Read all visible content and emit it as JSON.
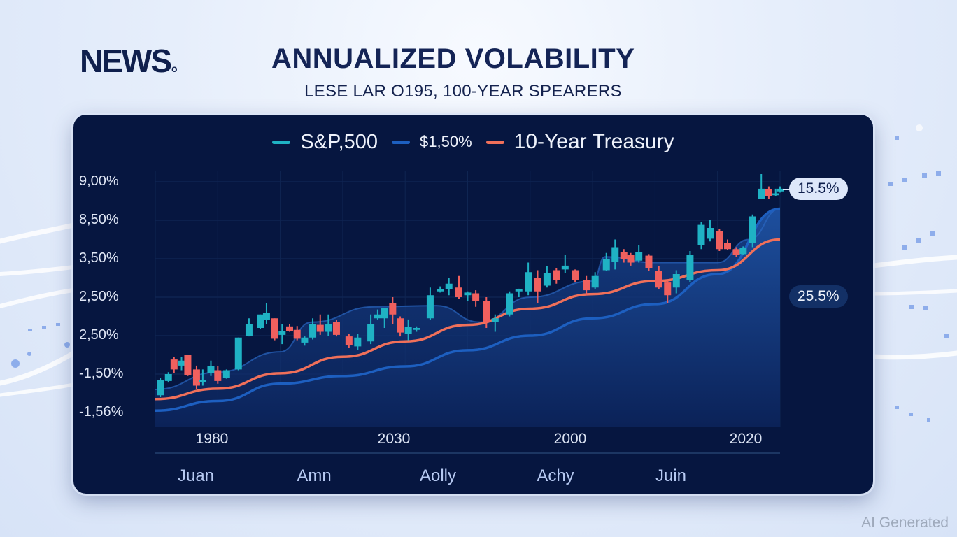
{
  "header": {
    "brand": "NEWS",
    "brand_mark": "o",
    "title": "ANNUALIZED VOLABILITY",
    "subtitle": "LESE LAR O195, 100-YEAR SPEARERS"
  },
  "watermark": "AI Generated",
  "colors": {
    "panel_bg": "#061640",
    "sp500": "#1fb2c4",
    "secondary": "#1d5fc0",
    "treasury": "#f0705a",
    "candle_up": "#1fb2c4",
    "candle_down": "#f0605e",
    "area": "#1a4b9c"
  },
  "chart_data": {
    "type": "line",
    "title": "ANNUALIZED VOLABILITY",
    "subtitle": "LESE LAR O195, 100-YEAR SPEARERS",
    "legend_position": "top-center",
    "legend": [
      {
        "name": "S&P,500",
        "color": "#1fb2c4"
      },
      {
        "name": "$1,50%",
        "color": "#1d5fc0"
      },
      {
        "name": "10-Year Treasury",
        "color": "#f0705a"
      }
    ],
    "y_ticks": [
      "9,00%",
      "8,50%",
      "3,50%",
      "2,50%",
      "2,50%",
      "-1,50%",
      "-1,56%"
    ],
    "y_scale_note": "values below are in tick-index units: 0 = bottom tick (-1,56%), 6 = top tick (9,00%)",
    "ylim": [
      0,
      6
    ],
    "x_ticks": [
      "1980",
      "2030",
      "2000",
      "2020"
    ],
    "x_ticks_secondary": [
      "Juan",
      "Amn",
      "Aolly",
      "Achy",
      "Juin"
    ],
    "xlim": [
      0,
      1
    ],
    "grid": true,
    "series": [
      {
        "name": "10-Year Treasury",
        "style": "line",
        "x": [
          0,
          0.1,
          0.2,
          0.3,
          0.4,
          0.5,
          0.6,
          0.7,
          0.8,
          0.9,
          1.0
        ],
        "y": [
          0.35,
          0.62,
          1.02,
          1.45,
          1.85,
          2.28,
          2.7,
          3.08,
          3.42,
          3.7,
          4.5
        ]
      },
      {
        "name": "$1,50%",
        "style": "line",
        "x": [
          0,
          0.1,
          0.2,
          0.3,
          0.4,
          0.5,
          0.6,
          0.7,
          0.8,
          0.9,
          1.0
        ],
        "y": [
          0.05,
          0.3,
          0.75,
          0.95,
          1.2,
          1.62,
          2.0,
          2.45,
          2.82,
          3.6,
          5.3
        ]
      },
      {
        "name": "S&P,500 band",
        "style": "area",
        "x": [
          0,
          0.1,
          0.2,
          0.25,
          0.35,
          0.45,
          0.52,
          0.6,
          0.7,
          0.72,
          0.8,
          0.9,
          0.95,
          1.0
        ],
        "y": [
          0.6,
          1.05,
          1.58,
          2.35,
          2.75,
          2.78,
          2.35,
          3.0,
          3.42,
          4.05,
          3.9,
          3.9,
          4.5,
          5.3
        ]
      }
    ],
    "candles": [
      {
        "x": 0.008,
        "o": 0.45,
        "c": 0.85,
        "h": 0.9,
        "l": 0.4
      },
      {
        "x": 0.021,
        "o": 0.82,
        "c": 1.0,
        "h": 1.05,
        "l": 0.78
      },
      {
        "x": 0.03,
        "o": 1.38,
        "c": 1.12,
        "h": 1.45,
        "l": 1.02
      },
      {
        "x": 0.042,
        "o": 1.22,
        "c": 1.35,
        "h": 1.45,
        "l": 1.1
      },
      {
        "x": 0.052,
        "o": 1.5,
        "c": 0.98,
        "h": 1.5,
        "l": 0.95
      },
      {
        "x": 0.066,
        "o": 1.12,
        "c": 0.7,
        "h": 1.22,
        "l": 0.6
      },
      {
        "x": 0.076,
        "o": 0.8,
        "c": 0.85,
        "h": 1.12,
        "l": 0.7
      },
      {
        "x": 0.089,
        "o": 1.02,
        "c": 1.2,
        "h": 1.35,
        "l": 0.95
      },
      {
        "x": 0.1,
        "o": 1.1,
        "c": 0.82,
        "h": 1.2,
        "l": 0.75
      },
      {
        "x": 0.114,
        "o": 0.9,
        "c": 1.1,
        "h": 1.12,
        "l": 0.88
      },
      {
        "x": 0.133,
        "o": 1.12,
        "c": 1.95,
        "h": 1.95,
        "l": 1.1
      },
      {
        "x": 0.15,
        "o": 2.0,
        "c": 2.3,
        "h": 2.45,
        "l": 1.98
      },
      {
        "x": 0.168,
        "o": 2.2,
        "c": 2.55,
        "h": 2.55,
        "l": 2.18
      },
      {
        "x": 0.178,
        "o": 2.4,
        "c": 2.6,
        "h": 2.85,
        "l": 2.3
      },
      {
        "x": 0.191,
        "o": 2.45,
        "c": 1.92,
        "h": 2.45,
        "l": 1.88
      },
      {
        "x": 0.203,
        "o": 2.02,
        "c": 2.12,
        "h": 2.3,
        "l": 1.78
      },
      {
        "x": 0.215,
        "o": 2.24,
        "c": 2.12,
        "h": 2.3,
        "l": 2.1
      },
      {
        "x": 0.227,
        "o": 2.15,
        "c": 1.92,
        "h": 2.25,
        "l": 1.88
      },
      {
        "x": 0.239,
        "o": 1.82,
        "c": 1.95,
        "h": 1.98,
        "l": 1.74
      },
      {
        "x": 0.252,
        "o": 1.95,
        "c": 2.3,
        "h": 2.45,
        "l": 1.9
      },
      {
        "x": 0.264,
        "o": 2.28,
        "c": 2.1,
        "h": 2.55,
        "l": 2.02
      },
      {
        "x": 0.277,
        "o": 2.1,
        "c": 2.3,
        "h": 2.55,
        "l": 2.0
      },
      {
        "x": 0.29,
        "o": 2.35,
        "c": 2.02,
        "h": 2.4,
        "l": 1.98
      },
      {
        "x": 0.31,
        "o": 1.98,
        "c": 1.75,
        "h": 2.05,
        "l": 1.68
      },
      {
        "x": 0.324,
        "o": 1.72,
        "c": 1.95,
        "h": 2.05,
        "l": 1.62
      },
      {
        "x": 0.345,
        "o": 1.85,
        "c": 2.3,
        "h": 2.55,
        "l": 1.78
      },
      {
        "x": 0.356,
        "o": 2.45,
        "c": 2.55,
        "h": 2.68,
        "l": 2.42
      },
      {
        "x": 0.367,
        "o": 2.45,
        "c": 2.72,
        "h": 2.72,
        "l": 2.2
      },
      {
        "x": 0.38,
        "o": 2.85,
        "c": 2.55,
        "h": 3.0,
        "l": 2.3
      },
      {
        "x": 0.392,
        "o": 2.45,
        "c": 2.08,
        "h": 2.5,
        "l": 1.98
      },
      {
        "x": 0.405,
        "o": 2.05,
        "c": 2.22,
        "h": 2.42,
        "l": 1.88
      },
      {
        "x": 0.418,
        "o": 2.15,
        "c": 2.2,
        "h": 2.24,
        "l": 2.1
      },
      {
        "x": 0.44,
        "o": 2.45,
        "c": 3.05,
        "h": 3.25,
        "l": 2.4
      },
      {
        "x": 0.456,
        "o": 3.15,
        "c": 3.2,
        "h": 3.28,
        "l": 3.12
      },
      {
        "x": 0.47,
        "o": 3.2,
        "c": 3.35,
        "h": 3.5,
        "l": 3.05
      },
      {
        "x": 0.486,
        "o": 3.25,
        "c": 3.0,
        "h": 3.55,
        "l": 2.95
      },
      {
        "x": 0.5,
        "o": 3.05,
        "c": 3.12,
        "h": 3.15,
        "l": 2.9
      },
      {
        "x": 0.513,
        "o": 3.1,
        "c": 2.9,
        "h": 3.18,
        "l": 2.75
      },
      {
        "x": 0.53,
        "o": 2.9,
        "c": 2.35,
        "h": 3.0,
        "l": 2.2
      },
      {
        "x": 0.544,
        "o": 2.35,
        "c": 2.45,
        "h": 2.55,
        "l": 2.1
      },
      {
        "x": 0.567,
        "o": 2.55,
        "c": 3.1,
        "h": 3.15,
        "l": 2.5
      },
      {
        "x": 0.582,
        "o": 3.15,
        "c": 3.2,
        "h": 3.22,
        "l": 3.0
      },
      {
        "x": 0.597,
        "o": 3.15,
        "c": 3.65,
        "h": 3.9,
        "l": 3.05
      },
      {
        "x": 0.612,
        "o": 3.5,
        "c": 3.15,
        "h": 3.7,
        "l": 2.85
      },
      {
        "x": 0.627,
        "o": 3.3,
        "c": 3.62,
        "h": 3.8,
        "l": 3.25
      },
      {
        "x": 0.642,
        "o": 3.7,
        "c": 3.45,
        "h": 3.75,
        "l": 3.35
      },
      {
        "x": 0.656,
        "o": 3.72,
        "c": 3.82,
        "h": 4.1,
        "l": 3.62
      },
      {
        "x": 0.672,
        "o": 3.7,
        "c": 3.45,
        "h": 3.72,
        "l": 3.4
      },
      {
        "x": 0.69,
        "o": 3.45,
        "c": 3.18,
        "h": 3.55,
        "l": 3.05
      },
      {
        "x": 0.704,
        "o": 3.25,
        "c": 3.55,
        "h": 3.65,
        "l": 3.2
      },
      {
        "x": 0.722,
        "o": 3.7,
        "c": 4.0,
        "h": 4.15,
        "l": 3.68
      },
      {
        "x": 0.736,
        "o": 3.92,
        "c": 4.3,
        "h": 4.5,
        "l": 3.72
      },
      {
        "x": 0.75,
        "o": 4.18,
        "c": 4.0,
        "h": 4.25,
        "l": 3.9
      },
      {
        "x": 0.761,
        "o": 4.1,
        "c": 3.9,
        "h": 4.15,
        "l": 3.82
      },
      {
        "x": 0.774,
        "o": 3.95,
        "c": 4.18,
        "h": 4.35,
        "l": 3.9
      },
      {
        "x": 0.79,
        "o": 4.08,
        "c": 3.75,
        "h": 4.12,
        "l": 3.68
      },
      {
        "x": 0.806,
        "o": 3.68,
        "c": 3.25,
        "h": 3.8,
        "l": 3.2
      },
      {
        "x": 0.82,
        "o": 3.38,
        "c": 3.05,
        "h": 3.45,
        "l": 2.85
      },
      {
        "x": 0.834,
        "o": 3.25,
        "c": 3.6,
        "h": 3.7,
        "l": 3.1
      },
      {
        "x": 0.856,
        "o": 3.45,
        "c": 4.1,
        "h": 4.2,
        "l": 3.4
      },
      {
        "x": 0.874,
        "o": 4.35,
        "c": 4.88,
        "h": 4.95,
        "l": 4.25
      },
      {
        "x": 0.888,
        "o": 4.52,
        "c": 4.8,
        "h": 5.0,
        "l": 4.45
      },
      {
        "x": 0.903,
        "o": 4.72,
        "c": 4.25,
        "h": 4.78,
        "l": 4.2
      },
      {
        "x": 0.916,
        "o": 4.4,
        "c": 4.25,
        "h": 4.5,
        "l": 4.22
      },
      {
        "x": 0.93,
        "o": 4.25,
        "c": 4.1,
        "h": 4.3,
        "l": 4.05
      },
      {
        "x": 0.941,
        "o": 4.12,
        "c": 4.28,
        "h": 4.32,
        "l": 4.1
      },
      {
        "x": 0.956,
        "o": 4.4,
        "c": 5.1,
        "h": 5.15,
        "l": 4.3
      },
      {
        "x": 0.97,
        "o": 5.55,
        "c": 5.82,
        "h": 6.2,
        "l": 5.55
      },
      {
        "x": 0.982,
        "o": 5.8,
        "c": 5.62,
        "h": 5.88,
        "l": 5.55
      },
      {
        "x": 0.993,
        "o": 5.65,
        "c": 5.7,
        "h": 5.82,
        "l": 5.62
      },
      {
        "x": 1.0,
        "o": 5.75,
        "c": 5.82,
        "h": 5.88,
        "l": 5.72
      }
    ],
    "annotations": [
      {
        "label": "15.5%",
        "style": "light",
        "y": 5.8
      },
      {
        "label": "25.5%",
        "style": "dark",
        "y": 3.0
      }
    ]
  }
}
